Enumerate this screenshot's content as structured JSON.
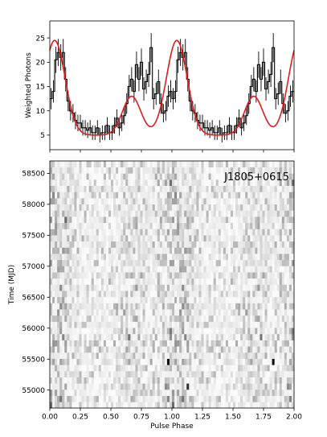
{
  "chart_data": [
    {
      "type": "line",
      "ylabel": "Weighted Photons",
      "xlim": [
        0.0,
        2.0
      ],
      "ylim": [
        2.0,
        28.5
      ],
      "yticks": [
        5,
        10,
        15,
        20,
        25
      ],
      "xticks": [
        0.0,
        0.25,
        0.5,
        0.75,
        1.0,
        1.25,
        1.5,
        1.75,
        2.0
      ],
      "grid": false,
      "series": [
        {
          "role": "histogram",
          "style": "steps-with-error-bars",
          "color": "#000000",
          "bin_width": 0.02,
          "values": [
            12.5,
            14.0,
            20.5,
            22.0,
            21.0,
            22.0,
            16.5,
            12.0,
            10.0,
            9.5,
            8.0,
            7.5,
            7.5,
            6.5,
            6.5,
            6.0,
            6.5,
            5.5,
            5.5,
            6.5,
            5.0,
            5.5,
            5.5,
            7.0,
            5.5,
            5.5,
            7.0,
            8.5,
            6.5,
            7.5,
            9.0,
            11.5,
            15.0,
            16.5,
            14.0,
            19.5,
            16.5,
            20.0,
            14.5,
            16.0,
            17.5,
            23.0,
            12.5,
            13.5,
            16.0,
            11.5,
            9.5,
            10.0,
            13.0,
            14.0
          ],
          "errors": [
            2.2,
            2.3,
            2.7,
            2.8,
            2.7,
            2.8,
            2.5,
            2.1,
            2.0,
            1.9,
            1.8,
            1.7,
            1.7,
            1.6,
            1.6,
            1.6,
            1.6,
            1.5,
            1.5,
            1.6,
            1.5,
            1.5,
            1.5,
            1.7,
            1.5,
            1.5,
            1.7,
            1.8,
            1.6,
            1.7,
            1.9,
            2.1,
            2.4,
            2.5,
            2.3,
            2.7,
            2.5,
            2.8,
            2.4,
            2.5,
            2.6,
            3.0,
            2.2,
            2.3,
            2.5,
            2.1,
            1.9,
            2.0,
            2.2,
            2.3
          ]
        },
        {
          "role": "model",
          "color": "#e41a1c",
          "components": [
            {
              "amp": 19.5,
              "center": 0.04,
              "sigma": 0.085
            },
            {
              "amp": 8.0,
              "center": 0.67,
              "sigma": 0.075
            }
          ],
          "baseline": 5.0
        }
      ]
    },
    {
      "type": "heatmap",
      "ylabel": "Time (MJD)",
      "xlabel": "Pulse Phase",
      "annotation": "J1805+0615",
      "xlim": [
        0.0,
        2.0
      ],
      "ylim": [
        54710,
        58700
      ],
      "xticks": [
        0.0,
        0.25,
        0.5,
        0.75,
        1.0,
        1.25,
        1.5,
        1.75,
        2.0
      ],
      "yticks": [
        55000,
        55500,
        56000,
        56500,
        57000,
        57500,
        58000,
        58500
      ],
      "phase_bins": 50,
      "time_bins": 40,
      "colormap": "gray_r",
      "seed": 1805,
      "bright_cells": [
        {
          "phase": 0.75,
          "mjd": 56885,
          "level": 1.0
        },
        {
          "phase": 0.96,
          "mjd": 55425,
          "level": 0.95
        },
        {
          "phase": 1.14,
          "mjd": 55070,
          "level": 0.8
        },
        {
          "phase": 1.82,
          "mjd": 55425,
          "level": 0.95
        },
        {
          "phase": 1.74,
          "mjd": 56885,
          "level": 1.0
        },
        {
          "phase": 0.13,
          "mjd": 57730,
          "level": 0.6
        },
        {
          "phase": 0.65,
          "mjd": 55860,
          "level": 0.55
        },
        {
          "phase": 1.72,
          "mjd": 55860,
          "level": 0.55
        }
      ]
    }
  ]
}
